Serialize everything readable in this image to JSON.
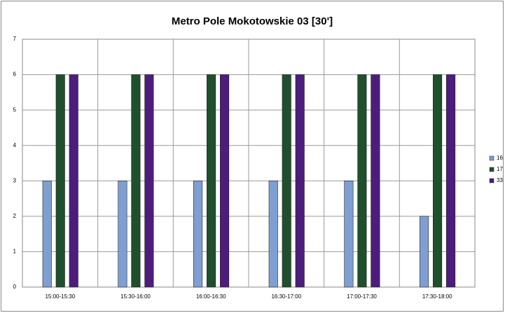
{
  "chart_data": {
    "type": "bar",
    "title": "Metro Pole Mokotowskie 03   [30']",
    "categories": [
      "15:00-15:30",
      "15:30-16:00",
      "16:00-16:30",
      "16:30-17:00",
      "17:00-17:30",
      "17:30-18:00"
    ],
    "series": [
      {
        "name": "16",
        "color": "#7f9fd2",
        "values": [
          3,
          3,
          3,
          3,
          3,
          2
        ]
      },
      {
        "name": "17",
        "color": "#1f4f2c",
        "values": [
          6,
          6,
          6,
          6,
          6,
          6
        ]
      },
      {
        "name": "33",
        "color": "#4d1c7d",
        "values": [
          6,
          6,
          6,
          6,
          6,
          6
        ]
      }
    ],
    "ylim": [
      0,
      7
    ],
    "yticks": [
      0,
      1,
      2,
      3,
      4,
      5,
      6,
      7
    ],
    "grid": true,
    "legend": "right"
  }
}
